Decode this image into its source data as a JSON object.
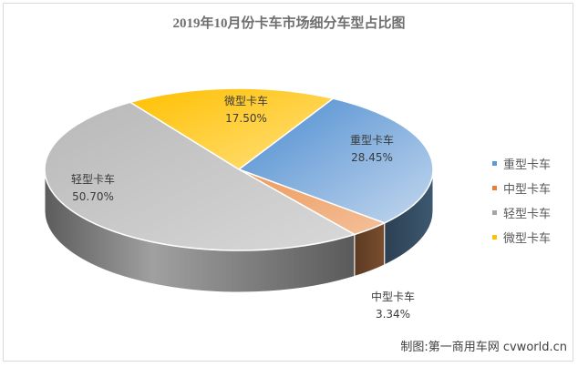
{
  "chart_data": {
    "type": "pie",
    "title": "2019年10月份卡车市场细分车型占比图",
    "slices": [
      {
        "name": "重型卡车",
        "value": 28.45,
        "value_label": "28.45%",
        "color": "#5b9bd5"
      },
      {
        "name": "中型卡车",
        "value": 3.34,
        "value_label": "3.34%",
        "color": "#ed7d31"
      },
      {
        "name": "轻型卡车",
        "value": 50.7,
        "value_label": "50.70%",
        "color": "#a5a5a5"
      },
      {
        "name": "微型卡车",
        "value": 17.5,
        "value_label": "17.50%",
        "color": "#ffc000"
      }
    ],
    "legend_position": "right",
    "three_d": true
  },
  "credit": "制图:第一商用车网 cvworld.cn"
}
